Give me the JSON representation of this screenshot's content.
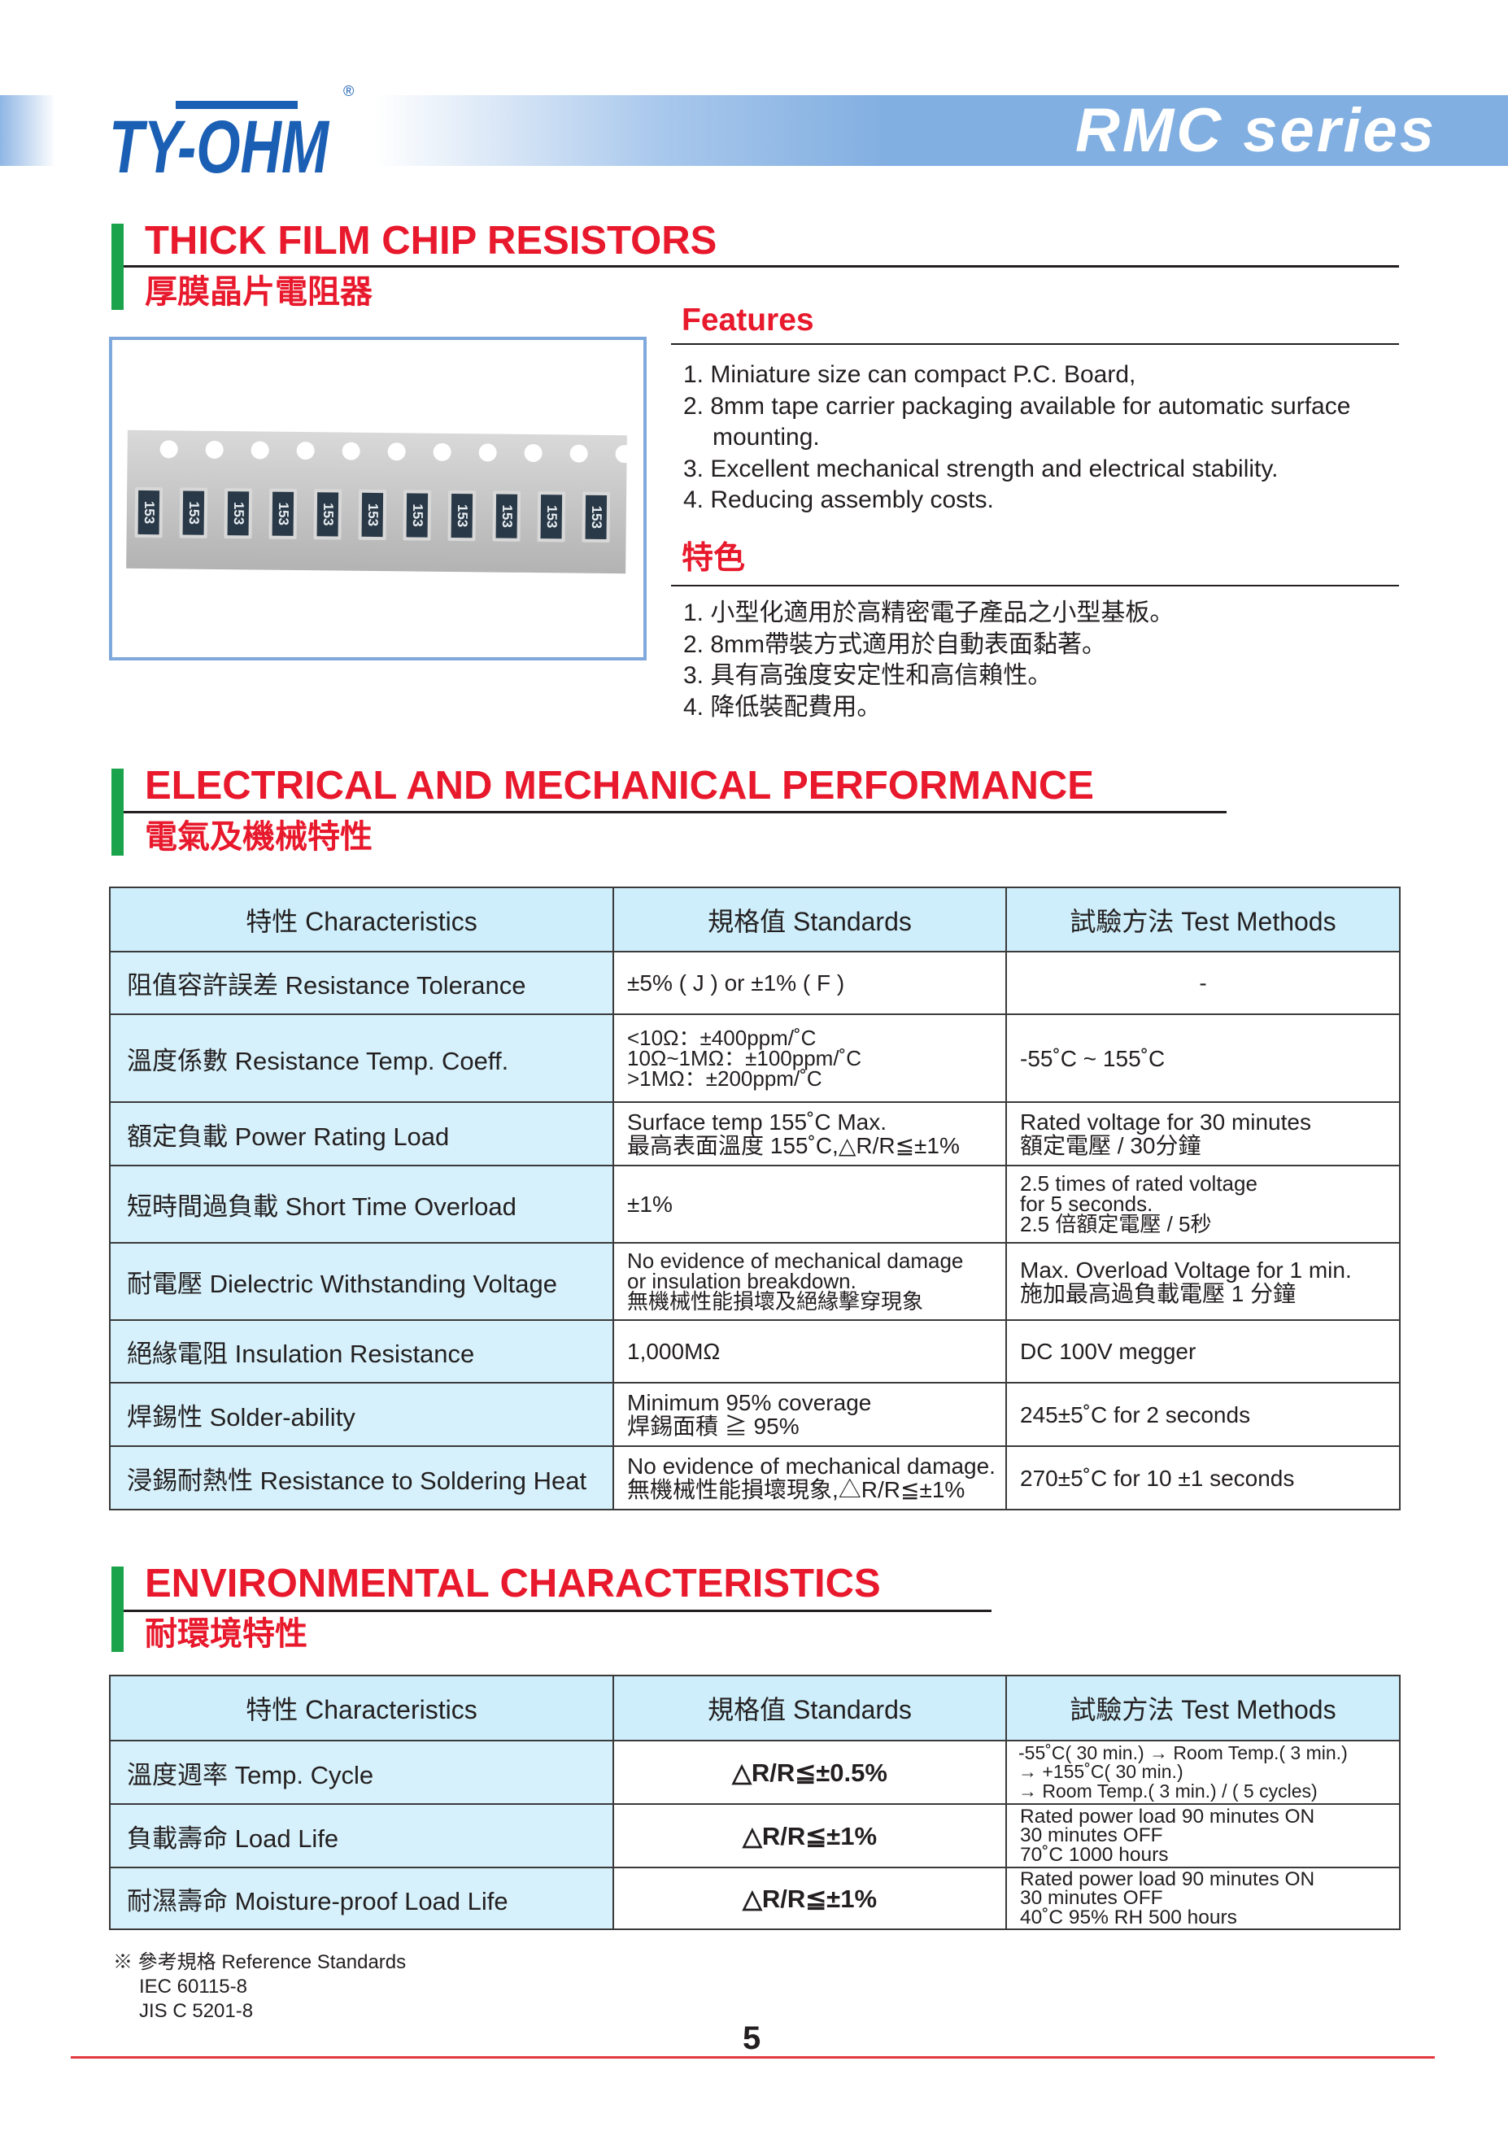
{
  "header": {
    "brand": "TY-OHM",
    "registered": "®",
    "series": "RMC series",
    "accent_blue": "#82afe1",
    "title_red": "#e8192c",
    "bar_green": "#1aa34a"
  },
  "section1": {
    "title_en": "THICK FILM CHIP RESISTORS",
    "title_zh": "厚膜晶片電阻器",
    "chip_marking": "153"
  },
  "features": {
    "heading": "Features",
    "items": [
      "1. Miniature size can compact P.C. Board,",
      "2. 8mm tape carrier packaging available for automatic surface",
      "    mounting.",
      "3. Excellent mechanical strength and electrical stability.",
      "4. Reducing assembly costs."
    ]
  },
  "features_zh": {
    "heading": "特色",
    "items": [
      "1. 小型化適用於高精密電子產品之小型基板。",
      "2. 8mm帶裝方式適用於自動表面黏著。",
      "3. 具有高強度安定性和高信賴性。",
      "4. 降低裝配費用。"
    ]
  },
  "section2": {
    "title_en": "ELECTRICAL AND MECHANICAL PERFORMANCE",
    "title_zh": "電氣及機械特性",
    "headers": [
      "特性  Characteristics",
      "規格值  Standards",
      "試驗方法  Test Methods"
    ],
    "rows": [
      {
        "char": "阻值容許誤差  Resistance Tolerance",
        "std": [
          "±5% ( J ) or  ±1% ( F )"
        ],
        "test": [
          "-"
        ]
      },
      {
        "char": "溫度係數  Resistance Temp. Coeff.",
        "std": [
          "<10Ω：±400ppm/˚C",
          "10Ω~1MΩ：±100ppm/˚C",
          ">1MΩ：±200ppm/˚C"
        ],
        "test": [
          "-55˚C ~ 155˚C"
        ]
      },
      {
        "char": "額定負載 Power Rating Load",
        "std": [
          "Surface temp 155˚C Max.",
          "最高表面溫度 155˚C,△R/R≦±1%"
        ],
        "test": [
          "Rated voltage for 30 minutes",
          "額定電壓 / 30分鐘"
        ]
      },
      {
        "char": "短時間過負載  Short Time Overload",
        "std": [
          " ±1%"
        ],
        "test": [
          "2.5 times of rated voltage",
          "for 5 seconds.",
          "2.5 倍額定電壓 / 5秒"
        ]
      },
      {
        "char": "耐電壓 Dielectric Withstanding Voltage",
        "std": [
          "No evidence of mechanical damage",
          "or insulation breakdown.",
          "無機械性能損壞及絕緣擊穿現象"
        ],
        "test": [
          "Max. Overload Voltage for 1 min.",
          "施加最高過負載電壓 1 分鐘"
        ]
      },
      {
        "char": "絕緣電阻 Insulation Resistance",
        "std": [
          " 1,000MΩ"
        ],
        "test": [
          "DC 100V megger"
        ]
      },
      {
        "char": "焊錫性 Solder-ability",
        "std": [
          "Minimum 95% coverage",
          "焊錫面積 ≧ 95%"
        ],
        "test": [
          "245±5˚C for 2 seconds"
        ]
      },
      {
        "char": "浸錫耐熱性 Resistance to Soldering Heat",
        "std": [
          "No evidence of mechanical damage.",
          "無機械性能損壞現象,△R/R≦±1%"
        ],
        "test": [
          "270±5˚C for 10 ±1 seconds"
        ]
      }
    ]
  },
  "section3": {
    "title_en": "ENVIRONMENTAL CHARACTERISTICS",
    "title_zh": "耐環境特性",
    "headers": [
      "特性  Characteristics",
      "規格值  Standards",
      "試驗方法  Test Methods"
    ],
    "rows": [
      {
        "char": "溫度週率 Temp. Cycle",
        "std": "△R/R≦±0.5%",
        "test": [
          "-55˚C( 30 min.) → Room Temp.( 3 min.)",
          "→ +155˚C( 30 min.)",
          "→ Room Temp.( 3 min.) / ( 5 cycles)"
        ]
      },
      {
        "char": "負載壽命 Load Life",
        "std": "△R/R≦±1%",
        "test": [
          "Rated power load 90 minutes ON",
          "30 minutes OFF",
          "70˚C 1000 hours"
        ]
      },
      {
        "char": "耐濕壽命 Moisture-proof Load Life",
        "std": "△R/R≦±1%",
        "test": [
          "Rated power load 90 minutes ON",
          "30 minutes OFF",
          "40˚C 95% RH 500 hours"
        ]
      }
    ]
  },
  "references": {
    "title": "※ 參考規格 Reference Standards",
    "items": [
      "IEC 60115-8",
      "JIS C 5201-8"
    ]
  },
  "page_number": "5"
}
